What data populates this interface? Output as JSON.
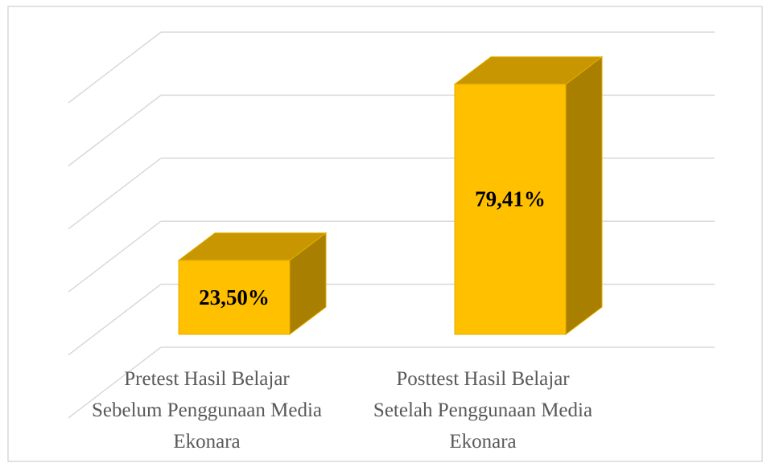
{
  "chart_data": {
    "type": "bar3d",
    "categories": [
      "Pretest Hasil Belajar Sebelum Penggunaan Media Ekonara",
      "Posttest Hasil Belajar Setelah Penggunaan Media Ekonara"
    ],
    "values": [
      23.5,
      79.41
    ],
    "value_labels": [
      "23,50%",
      "79,41%"
    ],
    "color": "#ffc000",
    "ylim": [
      0,
      100
    ],
    "yticks": [
      0,
      20,
      40,
      60,
      80,
      100
    ],
    "grid": true
  }
}
